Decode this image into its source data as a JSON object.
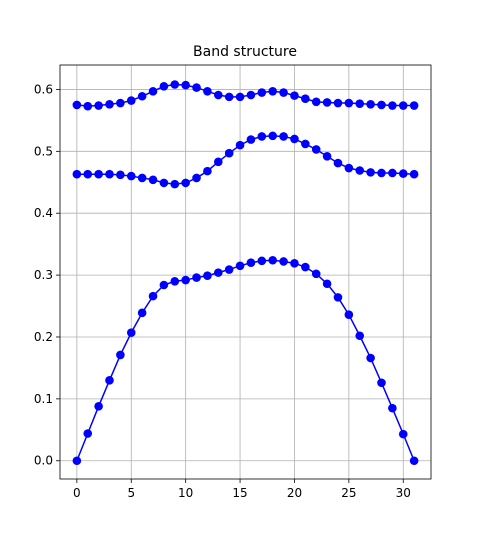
{
  "chart_data": {
    "type": "line",
    "title": "Band structure",
    "xlabel": "",
    "ylabel": "",
    "xlim": [
      -1.55,
      32.55
    ],
    "ylim": [
      -0.0295,
      0.6395
    ],
    "xticks": [
      0,
      5,
      10,
      15,
      20,
      25,
      30
    ],
    "yticks": [
      0.0,
      0.1,
      0.2,
      0.3,
      0.4,
      0.5,
      0.6
    ],
    "grid": true,
    "legend": "none",
    "color": "#0000ff",
    "x": [
      0,
      1,
      2,
      3,
      4,
      5,
      6,
      7,
      8,
      9,
      10,
      11,
      12,
      13,
      14,
      15,
      16,
      17,
      18,
      19,
      20,
      21,
      22,
      23,
      24,
      25,
      26,
      27,
      28,
      29,
      30,
      31
    ],
    "series": [
      {
        "values": [
          0.0,
          0.044,
          0.088,
          0.13,
          0.171,
          0.207,
          0.239,
          0.266,
          0.284,
          0.29,
          0.292,
          0.296,
          0.299,
          0.304,
          0.309,
          0.315,
          0.32,
          0.323,
          0.324,
          0.322,
          0.319,
          0.313,
          0.302,
          0.286,
          0.264,
          0.236,
          0.202,
          0.166,
          0.126,
          0.085,
          0.043,
          0.0
        ]
      },
      {
        "values": [
          0.463,
          0.463,
          0.463,
          0.463,
          0.462,
          0.46,
          0.457,
          0.454,
          0.449,
          0.447,
          0.449,
          0.457,
          0.468,
          0.483,
          0.497,
          0.51,
          0.519,
          0.524,
          0.525,
          0.524,
          0.52,
          0.512,
          0.503,
          0.492,
          0.481,
          0.473,
          0.469,
          0.466,
          0.465,
          0.465,
          0.464,
          0.463
        ]
      },
      {
        "values": [
          0.575,
          0.573,
          0.574,
          0.576,
          0.578,
          0.582,
          0.589,
          0.597,
          0.605,
          0.608,
          0.607,
          0.603,
          0.597,
          0.591,
          0.588,
          0.588,
          0.591,
          0.595,
          0.597,
          0.595,
          0.59,
          0.585,
          0.58,
          0.579,
          0.578,
          0.578,
          0.577,
          0.576,
          0.575,
          0.574,
          0.574,
          0.574
        ]
      }
    ]
  }
}
